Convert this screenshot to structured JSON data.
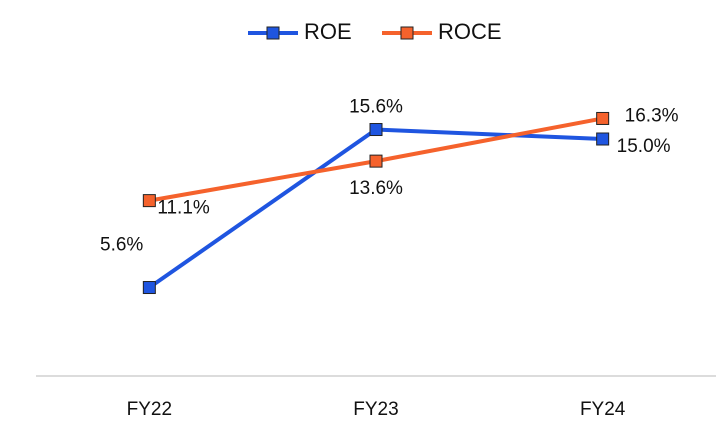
{
  "chart_data": {
    "type": "line",
    "categories": [
      "FY22",
      "FY23",
      "FY24"
    ],
    "series": [
      {
        "name": "ROE",
        "color": "#1f55e0",
        "values": [
          5.6,
          15.6,
          15.0
        ],
        "value_labels": [
          "5.6%",
          "15.6%",
          "15.0%"
        ]
      },
      {
        "name": "ROCE",
        "color": "#f5622c",
        "values": [
          11.1,
          13.6,
          16.3
        ],
        "value_labels": [
          "11.1%",
          "13.6%",
          "16.3%"
        ]
      }
    ],
    "ylim": [
      0,
      20
    ],
    "legend": "top"
  }
}
